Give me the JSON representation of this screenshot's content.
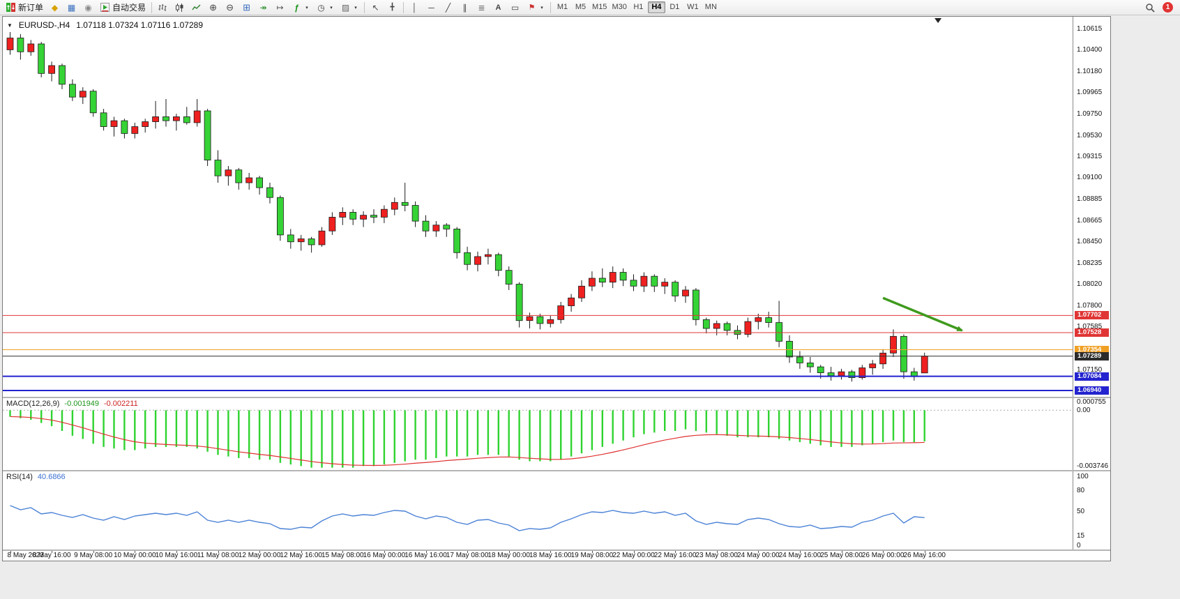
{
  "toolbar": {
    "new_order_label": "新订单",
    "autotrading_label": "自动交易",
    "timeframes": [
      "M1",
      "M5",
      "M15",
      "M30",
      "H1",
      "H4",
      "D1",
      "W1",
      "MN"
    ],
    "active_timeframe": "H4",
    "notification_count": "1"
  },
  "chart": {
    "title_symbol": "EURUSD-,H4",
    "title_ohlc": "1.07118 1.07324 1.07116 1.07289",
    "price_max": 1.10736,
    "price_min": 1.06876,
    "price_axis": [
      "1.10615",
      "1.10400",
      "1.10180",
      "1.09965",
      "1.09750",
      "1.09530",
      "1.09315",
      "1.09100",
      "1.08885",
      "1.08665",
      "1.08450",
      "1.08235",
      "1.08020",
      "1.07800",
      "1.07585",
      "1.07150"
    ],
    "levels": [
      {
        "label": "1.07702",
        "price": 1.07702,
        "color": "#e03535",
        "width": 1
      },
      {
        "label": "1.07528",
        "price": 1.07528,
        "color": "#e03535",
        "width": 1
      },
      {
        "label": "1.07354",
        "price": 1.07354,
        "color": "#f0a024",
        "width": 1
      },
      {
        "label": "1.07289",
        "price": 1.07289,
        "color": "#2b2b2b",
        "width": 1
      },
      {
        "label": "1.07084",
        "price": 1.07084,
        "color": "#2323cf",
        "width": 2
      },
      {
        "label": "1.06940",
        "price": 1.0694,
        "color": "#2323cf",
        "width": 2
      }
    ],
    "colors": {
      "bull": "#ef2020",
      "bear": "#36d336",
      "wick": "#1a1a1a",
      "macd_hist": "#2fd32f",
      "macd_signal": "#e03030",
      "rsi_line": "#4b82d6",
      "arrow": "#3f9a1d"
    },
    "shift_marker_bar": 89.3,
    "arrow": {
      "bar1": 84.0,
      "price1": 1.0788,
      "bar2": 91.6,
      "price2": 1.0755
    },
    "chart_data": {
      "type": "candlestick+macd+rsi",
      "note": "values mirrored in candles/macd/rsi arrays"
    },
    "candles": [
      [
        1.104,
        1.1058,
        1.1035,
        1.1052
      ],
      [
        1.1052,
        1.1056,
        1.103,
        1.1038
      ],
      [
        1.1038,
        1.105,
        1.1034,
        1.1046
      ],
      [
        1.1046,
        1.1048,
        1.1012,
        1.1016
      ],
      [
        1.1016,
        1.1028,
        1.1008,
        1.1024
      ],
      [
        1.1024,
        1.1026,
        1.1,
        1.1005
      ],
      [
        1.1005,
        1.101,
        1.0988,
        1.0992
      ],
      [
        1.0992,
        1.1002,
        1.0985,
        1.0998
      ],
      [
        1.0998,
        1.1,
        1.0972,
        1.0976
      ],
      [
        1.0976,
        1.098,
        1.0958,
        1.0962
      ],
      [
        1.0962,
        1.0972,
        1.0952,
        1.0968
      ],
      [
        1.0968,
        1.097,
        1.095,
        1.0955
      ],
      [
        1.0955,
        1.0966,
        1.095,
        1.0962
      ],
      [
        1.0962,
        1.097,
        1.0956,
        1.0967
      ],
      [
        1.0967,
        1.0988,
        1.096,
        1.0972
      ],
      [
        1.0972,
        1.099,
        1.0962,
        1.0968
      ],
      [
        1.0968,
        1.0975,
        1.0958,
        1.0972
      ],
      [
        1.0972,
        1.0982,
        1.0964,
        1.0966
      ],
      [
        1.0966,
        1.099,
        1.0962,
        1.0978
      ],
      [
        1.0978,
        1.098,
        1.0922,
        1.0928
      ],
      [
        1.0928,
        1.0938,
        1.0905,
        1.0912
      ],
      [
        1.0912,
        1.0922,
        1.0902,
        1.0918
      ],
      [
        1.0918,
        1.092,
        1.0898,
        1.0905
      ],
      [
        1.0905,
        1.0915,
        1.0898,
        1.091
      ],
      [
        1.091,
        1.0912,
        1.0893,
        1.09
      ],
      [
        1.09,
        1.0905,
        1.0884,
        1.089
      ],
      [
        1.089,
        1.0892,
        1.0846,
        1.0852
      ],
      [
        1.0852,
        1.0858,
        1.0838,
        1.0845
      ],
      [
        1.0845,
        1.0852,
        1.0836,
        1.0848
      ],
      [
        1.0848,
        1.085,
        1.0834,
        1.0842
      ],
      [
        1.0842,
        1.086,
        1.084,
        1.0856
      ],
      [
        1.0856,
        1.0875,
        1.0852,
        1.087
      ],
      [
        1.087,
        1.088,
        1.0862,
        1.0875
      ],
      [
        1.0875,
        1.0878,
        1.0862,
        1.0868
      ],
      [
        1.0868,
        1.0876,
        1.086,
        1.0872
      ],
      [
        1.0872,
        1.0878,
        1.0864,
        1.087
      ],
      [
        1.087,
        1.0882,
        1.0864,
        1.0878
      ],
      [
        1.0878,
        1.089,
        1.0872,
        1.0885
      ],
      [
        1.0885,
        1.0905,
        1.0876,
        1.0882
      ],
      [
        1.0882,
        1.0886,
        1.086,
        1.0866
      ],
      [
        1.0866,
        1.0872,
        1.085,
        1.0856
      ],
      [
        1.0856,
        1.0866,
        1.085,
        1.0862
      ],
      [
        1.0862,
        1.0864,
        1.085,
        1.0858
      ],
      [
        1.0858,
        1.086,
        1.0828,
        1.0834
      ],
      [
        1.0834,
        1.084,
        1.0816,
        1.0822
      ],
      [
        1.0822,
        1.0835,
        1.0815,
        1.083
      ],
      [
        1.083,
        1.0838,
        1.0822,
        1.0832
      ],
      [
        1.0832,
        1.0834,
        1.081,
        1.0816
      ],
      [
        1.0816,
        1.082,
        1.0796,
        1.0802
      ],
      [
        1.0802,
        1.0804,
        1.0758,
        1.0765
      ],
      [
        1.0765,
        1.0773,
        1.0757,
        1.0769
      ],
      [
        1.0769,
        1.0772,
        1.0756,
        1.0762
      ],
      [
        1.0762,
        1.077,
        1.0758,
        1.0766
      ],
      [
        1.0766,
        1.0784,
        1.0762,
        1.078
      ],
      [
        1.078,
        1.0792,
        1.0774,
        1.0788
      ],
      [
        1.0788,
        1.0806,
        1.0784,
        1.08
      ],
      [
        1.08,
        1.0815,
        1.0795,
        1.0808
      ],
      [
        1.0808,
        1.0818,
        1.0799,
        1.0804
      ],
      [
        1.0804,
        1.082,
        1.0798,
        1.0814
      ],
      [
        1.0814,
        1.0818,
        1.08,
        1.0806
      ],
      [
        1.0806,
        1.0812,
        1.0795,
        1.08
      ],
      [
        1.08,
        1.0814,
        1.0794,
        1.081
      ],
      [
        1.081,
        1.0812,
        1.0794,
        1.08
      ],
      [
        1.08,
        1.0808,
        1.0792,
        1.0804
      ],
      [
        1.0804,
        1.0806,
        1.0784,
        1.079
      ],
      [
        1.079,
        1.08,
        1.0783,
        1.0796
      ],
      [
        1.0796,
        1.0798,
        1.076,
        1.0766
      ],
      [
        1.0766,
        1.0768,
        1.0752,
        1.0757
      ],
      [
        1.0757,
        1.0765,
        1.075,
        1.0762
      ],
      [
        1.0762,
        1.0764,
        1.075,
        1.0755
      ],
      [
        1.0755,
        1.076,
        1.0746,
        1.0751
      ],
      [
        1.0751,
        1.0768,
        1.0748,
        1.0764
      ],
      [
        1.0764,
        1.0772,
        1.0756,
        1.0768
      ],
      [
        1.0768,
        1.0774,
        1.0758,
        1.0763
      ],
      [
        1.0763,
        1.0785,
        1.0738,
        1.0744
      ],
      [
        1.0744,
        1.075,
        1.0722,
        1.0728
      ],
      [
        1.0728,
        1.0734,
        1.0716,
        1.0722
      ],
      [
        1.0722,
        1.0728,
        1.0712,
        1.0718
      ],
      [
        1.0718,
        1.072,
        1.0706,
        1.0712
      ],
      [
        1.0712,
        1.0718,
        1.0704,
        1.0709
      ],
      [
        1.0709,
        1.0716,
        1.0705,
        1.0713
      ],
      [
        1.0713,
        1.0715,
        1.0703,
        1.0707
      ],
      [
        1.0707,
        1.072,
        1.0705,
        1.0717
      ],
      [
        1.0717,
        1.0725,
        1.071,
        1.0721
      ],
      [
        1.0721,
        1.0736,
        1.0716,
        1.0732
      ],
      [
        1.0732,
        1.0756,
        1.0728,
        1.0749
      ],
      [
        1.0749,
        1.0751,
        1.0706,
        1.0713
      ],
      [
        1.0713,
        1.0717,
        1.0704,
        1.0708
      ],
      [
        1.07118,
        1.07324,
        1.07116,
        1.07289
      ]
    ],
    "dates": [
      "8 May 2023",
      "8 May 16:00",
      "9 May 08:00",
      "10 May 00:00",
      "10 May 16:00",
      "11 May 08:00",
      "12 May 00:00",
      "12 May 16:00",
      "15 May 08:00",
      "16 May 00:00",
      "16 May 16:00",
      "17 May 08:00",
      "18 May 00:00",
      "18 May 16:00",
      "19 May 08:00",
      "22 May 00:00",
      "22 May 16:00",
      "23 May 08:00",
      "24 May 00:00",
      "24 May 16:00",
      "25 May 08:00",
      "26 May 00:00",
      "26 May 16:00"
    ],
    "macd": {
      "label": "MACD(12,26,9)",
      "value_main": "-0.001949",
      "value_signal": "-0.002211",
      "max": 0.000755,
      "min": -0.003746,
      "axis": [
        {
          "label": "0.000755",
          "v": 0.000755
        },
        {
          "label": "0.00",
          "v": 0
        },
        {
          "label": "-0.003746",
          "v": -0.003746
        }
      ],
      "hist": [
        -0.0004,
        -0.0005,
        -0.0006,
        -0.0008,
        -0.001,
        -0.0013,
        -0.0016,
        -0.0018,
        -0.0021,
        -0.0023,
        -0.0024,
        -0.0025,
        -0.0025,
        -0.0024,
        -0.0023,
        -0.0023,
        -0.0023,
        -0.0023,
        -0.0024,
        -0.0026,
        -0.0028,
        -0.0029,
        -0.003,
        -0.003,
        -0.0031,
        -0.0031,
        -0.0033,
        -0.0034,
        -0.0035,
        -0.0036,
        -0.0036,
        -0.0036,
        -0.0036,
        -0.0036,
        -0.0035,
        -0.0035,
        -0.0034,
        -0.0033,
        -0.0032,
        -0.0031,
        -0.0031,
        -0.003,
        -0.0029,
        -0.0029,
        -0.0029,
        -0.0028,
        -0.0028,
        -0.0028,
        -0.0029,
        -0.0031,
        -0.0032,
        -0.0032,
        -0.0032,
        -0.0031,
        -0.0029,
        -0.0027,
        -0.0025,
        -0.0023,
        -0.0021,
        -0.0019,
        -0.0017,
        -0.0015,
        -0.0014,
        -0.0013,
        -0.0013,
        -0.0012,
        -0.0013,
        -0.0014,
        -0.0015,
        -0.0016,
        -0.0017,
        -0.0017,
        -0.0017,
        -0.0017,
        -0.0018,
        -0.0019,
        -0.002,
        -0.0021,
        -0.0022,
        -0.0023,
        -0.0023,
        -0.0023,
        -0.0022,
        -0.0021,
        -0.002,
        -0.0019,
        -0.002,
        -0.002,
        -0.001949
      ]
    },
    "rsi": {
      "label": "RSI(14)",
      "value": "40.6866",
      "axis": [
        {
          "label": "100",
          "v": 100
        },
        {
          "label": "80",
          "v": 80
        },
        {
          "label": "50",
          "v": 50
        },
        {
          "label": "15",
          "v": 15
        },
        {
          "label": "0",
          "v": 0
        }
      ],
      "values": [
        58,
        52,
        55,
        46,
        48,
        44,
        41,
        45,
        40,
        37,
        42,
        38,
        43,
        45,
        47,
        45,
        47,
        44,
        49,
        37,
        34,
        37,
        34,
        37,
        34,
        32,
        25,
        24,
        27,
        26,
        36,
        43,
        46,
        43,
        45,
        44,
        48,
        51,
        50,
        43,
        39,
        43,
        41,
        34,
        31,
        37,
        38,
        33,
        30,
        22,
        25,
        24,
        26,
        34,
        39,
        45,
        49,
        48,
        51,
        48,
        47,
        50,
        47,
        49,
        44,
        47,
        36,
        31,
        34,
        32,
        31,
        38,
        40,
        38,
        32,
        28,
        27,
        30,
        25,
        26,
        28,
        27,
        34,
        37,
        43,
        47,
        33,
        42,
        40.6866
      ]
    }
  }
}
